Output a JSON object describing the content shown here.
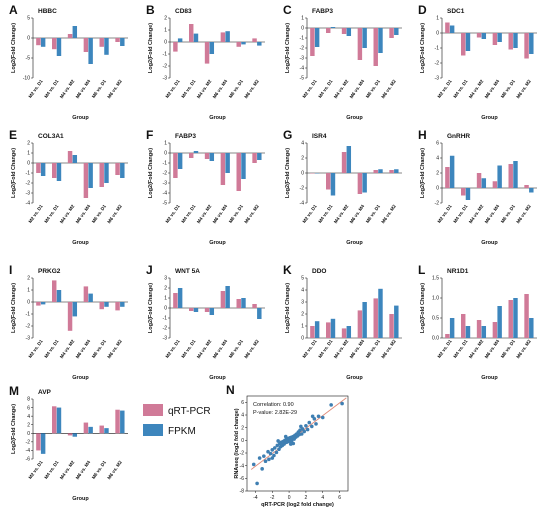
{
  "legend": {
    "items": [
      {
        "label": "qRT-PCR",
        "color": "#d07a98"
      },
      {
        "label": "FPKM",
        "color": "#3d86bd"
      }
    ]
  },
  "chart_data": [
    {
      "letter": "A",
      "type": "bar",
      "title": "HBBC",
      "xlabel": "Group",
      "ylabel": "Log2(Fold Change)",
      "ylim": [
        -10,
        5
      ],
      "yticks": [
        5,
        0,
        -5,
        -10
      ],
      "categories": [
        "M2 vs. D1",
        "M4 vs. D1",
        "M4 vs. M2",
        "M6 vs. M4",
        "M6 vs. D1",
        "M6 vs. M2"
      ],
      "series": [
        {
          "name": "qRT-PCR",
          "values": [
            -1.8,
            -2.8,
            1.0,
            -3.5,
            -2.2,
            -1.0
          ]
        },
        {
          "name": "FPKM",
          "values": [
            -2.2,
            -4.5,
            3.0,
            -6.5,
            -4.2,
            -2.0
          ]
        }
      ]
    },
    {
      "letter": "B",
      "type": "bar",
      "title": "CD83",
      "xlabel": "Group",
      "ylabel": "Log2(Fold Change)",
      "ylim": [
        -3,
        2
      ],
      "yticks": [
        2,
        1,
        0,
        -1,
        -2,
        -3
      ],
      "categories": [
        "M2 vs. D1",
        "M4 vs. D1",
        "M4 vs. M2",
        "M6 vs. M4",
        "M6 vs. D1",
        "M6 vs. M2"
      ],
      "series": [
        {
          "name": "qRT-PCR",
          "values": [
            -0.8,
            1.5,
            -1.8,
            0.8,
            -0.4,
            0.3
          ]
        },
        {
          "name": "FPKM",
          "values": [
            0.3,
            0.7,
            -1.0,
            0.9,
            -0.2,
            -0.3
          ]
        }
      ]
    },
    {
      "letter": "C",
      "type": "bar",
      "title": "FABP3",
      "xlabel": "Group",
      "ylabel": "Log2(Fold Change)",
      "ylim": [
        -5,
        1
      ],
      "yticks": [
        1,
        0,
        -1,
        -2,
        -3,
        -4,
        -5
      ],
      "categories": [
        "M2 vs. D1",
        "M4 vs. D1",
        "M4 vs. M2",
        "M6 vs. M4",
        "M6 vs. D1",
        "M6 vs. M2"
      ],
      "series": [
        {
          "name": "qRT-PCR",
          "values": [
            -2.8,
            -0.5,
            -0.6,
            -3.2,
            -3.8,
            -1.0
          ]
        },
        {
          "name": "FPKM",
          "values": [
            -1.9,
            0.1,
            -0.8,
            -2.0,
            -2.5,
            -0.7
          ]
        }
      ]
    },
    {
      "letter": "D",
      "type": "bar",
      "title": "SDC1",
      "xlabel": "Group",
      "ylabel": "Log2(Fold Change)",
      "ylim": [
        -3,
        1
      ],
      "yticks": [
        1,
        0,
        -1,
        -2,
        -3
      ],
      "categories": [
        "M2 vs. D1",
        "M4 vs. D1",
        "M4 vs. M2",
        "M6 vs. M4",
        "M6 vs. D1",
        "M6 vs. M2"
      ],
      "series": [
        {
          "name": "qRT-PCR",
          "values": [
            0.7,
            -1.5,
            -0.3,
            -0.8,
            -1.1,
            -1.7
          ]
        },
        {
          "name": "FPKM",
          "values": [
            0.5,
            -1.2,
            -0.4,
            -0.6,
            -1.0,
            -1.4
          ]
        }
      ]
    },
    {
      "letter": "E",
      "type": "bar",
      "title": "COL3A1",
      "xlabel": "Group",
      "ylabel": "Log2(Fold Change)",
      "ylim": [
        -4,
        2
      ],
      "yticks": [
        2,
        1,
        0,
        -1,
        -2,
        -3,
        -4
      ],
      "categories": [
        "M2 vs. D1",
        "M4 vs. D1",
        "M4 vs. M2",
        "M6 vs. M4",
        "M6 vs. D1",
        "M6 vs. M2"
      ],
      "series": [
        {
          "name": "qRT-PCR",
          "values": [
            -1.0,
            -1.5,
            1.2,
            -3.5,
            -2.4,
            -1.2
          ]
        },
        {
          "name": "FPKM",
          "values": [
            -1.3,
            -1.8,
            0.8,
            -2.5,
            -2.0,
            -1.5
          ]
        }
      ]
    },
    {
      "letter": "F",
      "type": "bar",
      "title": "FABP3",
      "xlabel": "Group",
      "ylabel": "Log2(Fold Change)",
      "ylim": [
        -5,
        1
      ],
      "yticks": [
        1,
        0,
        -1,
        -2,
        -3,
        -4,
        -5
      ],
      "categories": [
        "M2 vs. D1",
        "M4 vs. D1",
        "M4 vs. M2",
        "M6 vs. M4",
        "M6 vs. D1",
        "M6 vs. M2"
      ],
      "series": [
        {
          "name": "qRT-PCR",
          "values": [
            -2.5,
            -0.5,
            -0.6,
            -3.2,
            -3.8,
            -1.0
          ]
        },
        {
          "name": "FPKM",
          "values": [
            -1.6,
            0.2,
            -0.8,
            -2.0,
            -2.6,
            -0.7
          ]
        }
      ]
    },
    {
      "letter": "G",
      "type": "bar",
      "title": "ISR4",
      "xlabel": "Group",
      "ylabel": "Log2(Fold Change)",
      "ylim": [
        -4,
        4
      ],
      "yticks": [
        4,
        2,
        0,
        -2,
        -4
      ],
      "categories": [
        "M2 vs. D1",
        "M4 vs. D1",
        "M4 vs. M2",
        "M6 vs. M4",
        "M6 vs. D1",
        "M6 vs. M2"
      ],
      "series": [
        {
          "name": "qRT-PCR",
          "values": [
            0.0,
            -2.2,
            2.8,
            -2.8,
            0.4,
            0.4
          ]
        },
        {
          "name": "FPKM",
          "values": [
            0.0,
            -3.0,
            3.6,
            -2.6,
            0.5,
            0.5
          ]
        }
      ]
    },
    {
      "letter": "H",
      "type": "bar",
      "title": "GnRHR",
      "xlabel": "Group",
      "ylabel": "Log2(Fold Change)",
      "ylim": [
        -2,
        6
      ],
      "yticks": [
        6,
        4,
        2,
        0,
        -2
      ],
      "categories": [
        "M2 vs. D1",
        "M4 vs. D1",
        "M4 vs. M2",
        "M6 vs. M4",
        "M6 vs. D1",
        "M6 vs. M2"
      ],
      "series": [
        {
          "name": "qRT-PCR",
          "values": [
            2.8,
            -1.0,
            2.0,
            0.9,
            3.2,
            0.4
          ]
        },
        {
          "name": "FPKM",
          "values": [
            4.3,
            -1.6,
            1.3,
            3.0,
            3.6,
            -0.6
          ]
        }
      ]
    },
    {
      "letter": "I",
      "type": "bar",
      "title": "PRKG2",
      "xlabel": "Group",
      "ylabel": "Log2(Fold Change)",
      "ylim": [
        -3,
        2
      ],
      "yticks": [
        2,
        1,
        0,
        -1,
        -2,
        -3
      ],
      "categories": [
        "M2 vs. D1",
        "M4 vs. D1",
        "M4 vs. M2",
        "M6 vs. M4",
        "M6 vs. D1",
        "M6 vs. M2"
      ],
      "series": [
        {
          "name": "qRT-PCR",
          "values": [
            -0.3,
            1.8,
            -2.4,
            1.3,
            -0.6,
            -0.7
          ]
        },
        {
          "name": "FPKM",
          "values": [
            -0.2,
            1.0,
            -1.2,
            0.7,
            -0.4,
            -0.4
          ]
        }
      ]
    },
    {
      "letter": "J",
      "type": "bar",
      "title": "WNT 5A",
      "xlabel": "Group",
      "ylabel": "Log2(Fold Change)",
      "ylim": [
        -3,
        3
      ],
      "yticks": [
        3,
        2,
        1,
        0,
        -1,
        -2,
        -3
      ],
      "categories": [
        "M2 vs. D1",
        "M4 vs. D1",
        "M4 vs. M2",
        "M6 vs. M4",
        "M6 vs. D1",
        "M6 vs. M2"
      ],
      "series": [
        {
          "name": "qRT-PCR",
          "values": [
            1.5,
            -0.3,
            -0.4,
            1.7,
            0.9,
            0.4
          ]
        },
        {
          "name": "FPKM",
          "values": [
            2.0,
            -0.4,
            -0.7,
            2.2,
            1.0,
            -1.1
          ]
        }
      ]
    },
    {
      "letter": "K",
      "type": "bar",
      "title": "DDO",
      "xlabel": "Group",
      "ylabel": "Log2(Fold Change)",
      "ylim": [
        0,
        5
      ],
      "yticks": [
        5,
        4,
        3,
        2,
        1,
        0
      ],
      "categories": [
        "M2 vs. D1",
        "M4 vs. D1",
        "M4 vs. M2",
        "M6 vs. M4",
        "M6 vs. D1",
        "M6 vs. M2"
      ],
      "series": [
        {
          "name": "qRT-PCR",
          "values": [
            1.0,
            1.3,
            0.8,
            2.3,
            3.3,
            2.0
          ]
        },
        {
          "name": "FPKM",
          "values": [
            1.4,
            1.6,
            1.0,
            3.0,
            4.1,
            2.7
          ]
        }
      ]
    },
    {
      "letter": "L",
      "type": "bar",
      "title": "NR1D1",
      "xlabel": "Group",
      "ylabel": "Log2(Fold Change)",
      "ylim": [
        0,
        1.5
      ],
      "yticks": [
        1.5,
        1.0,
        0.5,
        0.0
      ],
      "categories": [
        "M2 vs. D1",
        "M4 vs. D1",
        "M4 vs. M2",
        "M6 vs. M4",
        "M6 vs. D1",
        "M6 vs. M2"
      ],
      "series": [
        {
          "name": "qRT-PCR",
          "values": [
            0.1,
            0.6,
            0.45,
            0.4,
            0.95,
            1.1
          ]
        },
        {
          "name": "FPKM",
          "values": [
            0.5,
            0.3,
            0.3,
            0.8,
            1.0,
            0.5
          ]
        }
      ]
    },
    {
      "letter": "M",
      "type": "bar",
      "title": "AVP",
      "xlabel": "Group",
      "ylabel": "Log2(Fold Change)",
      "ylim": [
        -6,
        8
      ],
      "yticks": [
        8,
        6,
        4,
        2,
        0,
        -2,
        -4,
        -6
      ],
      "categories": [
        "M2 vs. D1",
        "M4 vs. D1",
        "M4 vs. M2",
        "M6 vs. M4",
        "M6 vs. D1",
        "M6 vs. M2"
      ],
      "series": [
        {
          "name": "qRT-PCR",
          "values": [
            -4.0,
            6.3,
            -0.5,
            2.5,
            1.8,
            5.5
          ]
        },
        {
          "name": "FPKM",
          "values": [
            -4.8,
            6.0,
            -0.8,
            1.5,
            1.2,
            5.3
          ]
        }
      ]
    },
    {
      "letter": "N",
      "type": "scatter",
      "xlabel": "qRT-PCR (log2 fold change)",
      "ylabel": "RNAseq (log2 fold change)",
      "xlim": [
        -5,
        7
      ],
      "ylim": [
        -8,
        7
      ],
      "xticks": [
        -4,
        -2,
        0,
        2,
        4,
        6
      ],
      "yticks": [
        6,
        4,
        2,
        0,
        -2,
        -4,
        -6,
        -8
      ],
      "annotation": {
        "correlation": "Correlation: 0.90",
        "pvalue": "P-value: 2.82E-29"
      },
      "fit": {
        "slope": 1.0,
        "intercept": -0.1
      },
      "points": [
        [
          -4.2,
          -3.8
        ],
        [
          -3.8,
          -6.8
        ],
        [
          -3.5,
          -2.8
        ],
        [
          -3.2,
          -4.5
        ],
        [
          -3.0,
          -2.5
        ],
        [
          -2.8,
          -3.3
        ],
        [
          -2.5,
          -1.8
        ],
        [
          -2.4,
          -3.0
        ],
        [
          -2.2,
          -2.1
        ],
        [
          -2.0,
          -1.5
        ],
        [
          -1.8,
          -2.4
        ],
        [
          -1.7,
          -1.2
        ],
        [
          -1.5,
          -1.9
        ],
        [
          -1.4,
          -0.8
        ],
        [
          -1.2,
          -1.4
        ],
        [
          -1.1,
          -0.5
        ],
        [
          -1.0,
          -1.0
        ],
        [
          -0.9,
          -0.3
        ],
        [
          -0.8,
          -0.8
        ],
        [
          -0.7,
          -0.2
        ],
        [
          -0.6,
          -0.6
        ],
        [
          -0.5,
          0.0
        ],
        [
          -0.5,
          -0.4
        ],
        [
          -0.4,
          -0.1
        ],
        [
          -0.3,
          0.2
        ],
        [
          -0.3,
          -0.3
        ],
        [
          -0.2,
          0.0
        ],
        [
          -0.1,
          0.3
        ],
        [
          -0.1,
          -0.2
        ],
        [
          0.0,
          0.1
        ],
        [
          0.0,
          -0.1
        ],
        [
          0.1,
          0.4
        ],
        [
          0.1,
          0.0
        ],
        [
          0.2,
          0.2
        ],
        [
          0.3,
          0.5
        ],
        [
          0.3,
          -0.1
        ],
        [
          0.4,
          0.3
        ],
        [
          0.5,
          0.6
        ],
        [
          0.6,
          0.2
        ],
        [
          0.7,
          0.8
        ],
        [
          0.8,
          0.5
        ],
        [
          0.9,
          1.0
        ],
        [
          1.0,
          0.7
        ],
        [
          1.1,
          1.3
        ],
        [
          1.2,
          0.9
        ],
        [
          1.3,
          1.6
        ],
        [
          1.5,
          1.0
        ],
        [
          1.6,
          1.8
        ],
        [
          1.8,
          1.4
        ],
        [
          2.0,
          2.3
        ],
        [
          2.2,
          1.7
        ],
        [
          2.4,
          2.8
        ],
        [
          2.7,
          2.2
        ],
        [
          3.0,
          3.4
        ],
        [
          3.2,
          2.6
        ],
        [
          3.5,
          3.8
        ],
        [
          4.0,
          3.6
        ],
        [
          5.0,
          5.6
        ],
        [
          6.3,
          5.8
        ],
        [
          0.5,
          -0.5
        ],
        [
          -1.3,
          -0.1
        ],
        [
          1.4,
          2.2
        ],
        [
          -2.0,
          -2.8
        ],
        [
          2.8,
          3.8
        ],
        [
          -0.4,
          0.6
        ],
        [
          0.2,
          -0.6
        ]
      ]
    }
  ]
}
